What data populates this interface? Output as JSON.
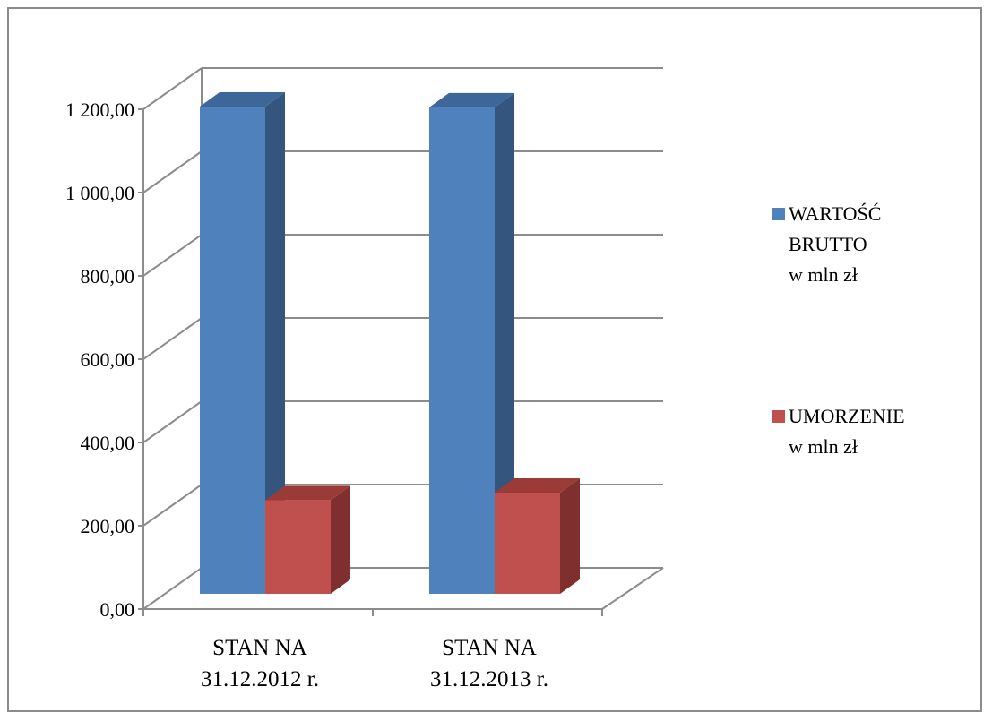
{
  "chart_data": {
    "type": "bar",
    "style": "3d-clustered-column",
    "categories": [
      [
        "STAN NA",
        "31.12.2012 r."
      ],
      [
        "STAN NA",
        "31.12.2013 r."
      ]
    ],
    "series": [
      {
        "name": [
          "WARTOŚĆ",
          "BRUTTO",
          "w mln zł"
        ],
        "values": [
          1170,
          1168
        ],
        "color": "#4f81bd",
        "side_color": "#34557d",
        "top_color": "#3d6699"
      },
      {
        "name": [
          "UMORZENIE",
          "w mln zł"
        ],
        "values": [
          225,
          243
        ],
        "color": "#c0504d",
        "side_color": "#7f302e",
        "top_color": "#9b3b38"
      }
    ],
    "y_ticks": [
      "0,00",
      "200,00",
      "400,00",
      "600,00",
      "800,00",
      "1 000,00",
      "1 200,00"
    ],
    "ylim": [
      0,
      1200
    ],
    "grid": true,
    "legend_position": "right"
  }
}
